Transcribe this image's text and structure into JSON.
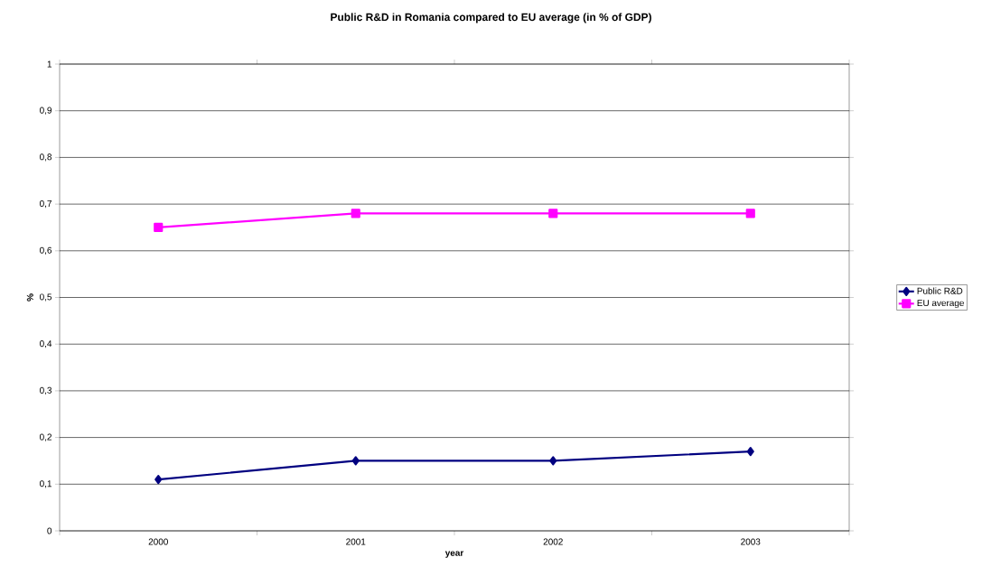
{
  "chart_data": {
    "type": "line",
    "title": "Public R&D in Romania compared to EU average (in % of GDP)",
    "xlabel": "year",
    "ylabel": "%",
    "categories": [
      "2000",
      "2001",
      "2002",
      "2003"
    ],
    "series": [
      {
        "name": "Public R&D",
        "color": "#000080",
        "marker": "diamond",
        "values": [
          0.11,
          0.15,
          0.15,
          0.17
        ]
      },
      {
        "name": "EU average",
        "color": "#ff00ff",
        "marker": "square",
        "values": [
          0.65,
          0.68,
          0.68,
          0.68
        ]
      }
    ],
    "ylim": [
      0,
      1
    ],
    "yticks": [
      0,
      {
        "value": 0.1,
        "label": "0,1"
      },
      {
        "value": 0.2,
        "label": "0,2"
      },
      {
        "value": 0.3,
        "label": "0,3"
      },
      {
        "value": 0.4,
        "label": "0,4"
      },
      {
        "value": 0.5,
        "label": "0,5"
      },
      {
        "value": 0.6,
        "label": "0,6"
      },
      {
        "value": 0.7,
        "label": "0,7"
      },
      {
        "value": 0.8,
        "label": "0,8"
      },
      {
        "value": 0.9,
        "label": "0,9"
      },
      1
    ],
    "grid": "y",
    "legend": "right",
    "line_style": "solid"
  }
}
